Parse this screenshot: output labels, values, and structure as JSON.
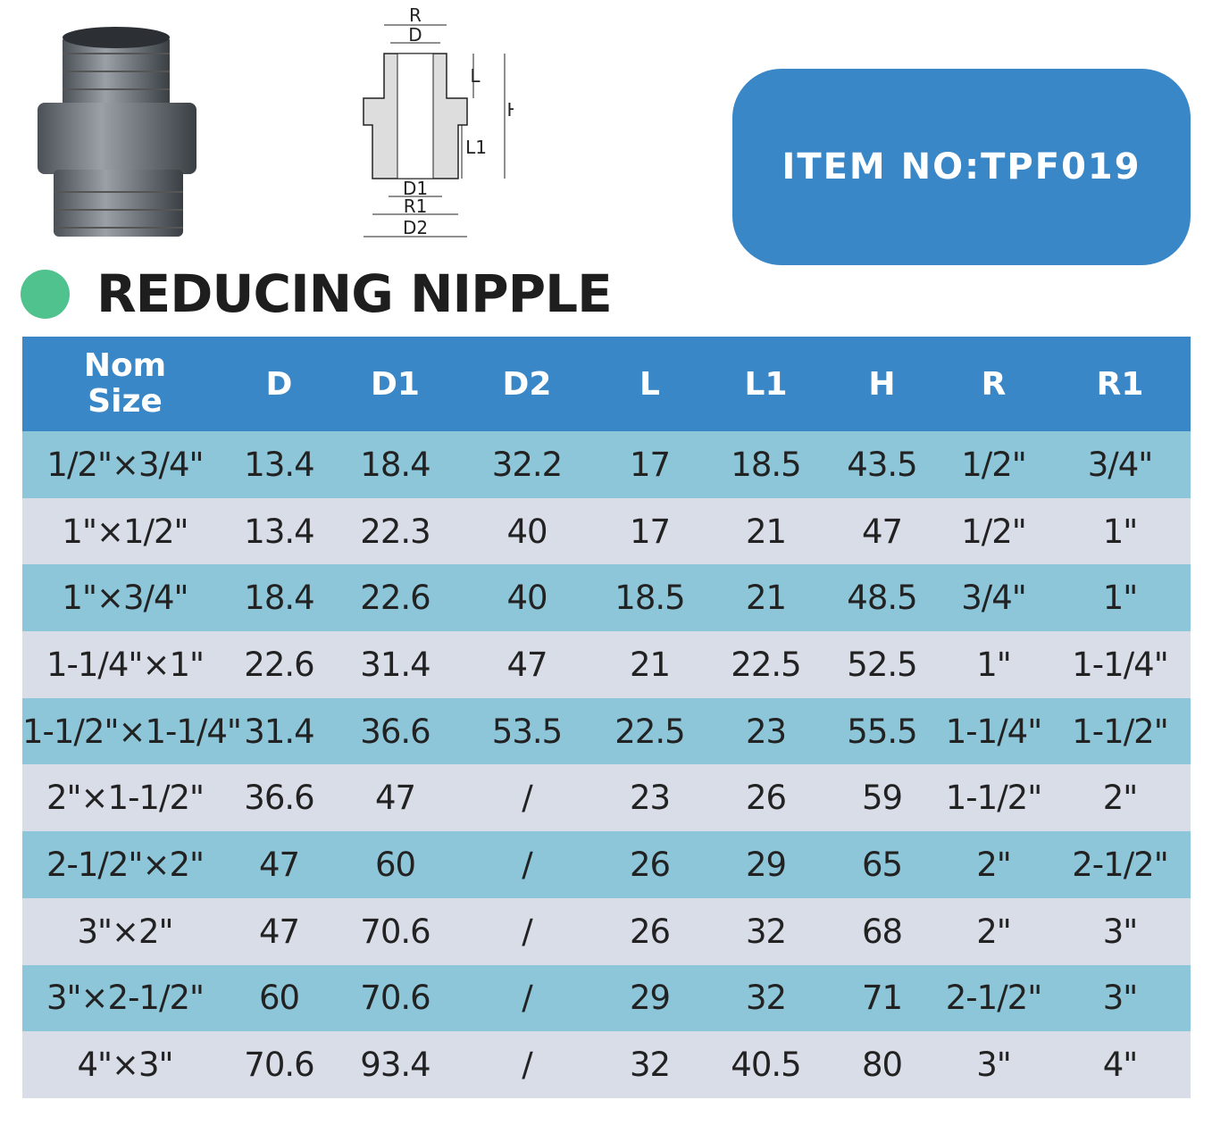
{
  "drawing": {
    "labels": [
      "R",
      "D",
      "L",
      "H",
      "L1",
      "D1",
      "R1",
      "D2"
    ]
  },
  "item_no": "ITEM NO:TPF019",
  "title": "REDUCING NIPPLE",
  "table": {
    "header": [
      "Nom Size",
      "D",
      "D1",
      "D2",
      "L",
      "L1",
      "H",
      "R",
      "R1"
    ],
    "rows": [
      [
        "1/2\"×3/4\"",
        "13.4",
        "18.4",
        "32.2",
        "17",
        "18.5",
        "43.5",
        "1/2\"",
        "3/4\""
      ],
      [
        "1\"×1/2\"",
        "13.4",
        "22.3",
        "40",
        "17",
        "21",
        "47",
        "1/2\"",
        "1\""
      ],
      [
        "1\"×3/4\"",
        "18.4",
        "22.6",
        "40",
        "18.5",
        "21",
        "48.5",
        "3/4\"",
        "1\""
      ],
      [
        "1-1/4\"×1\"",
        "22.6",
        "31.4",
        "47",
        "21",
        "22.5",
        "52.5",
        "1\"",
        "1-1/4\""
      ],
      [
        "1-1/2\"×1-1/4\"",
        "31.4",
        "36.6",
        "53.5",
        "22.5",
        "23",
        "55.5",
        "1-1/4\"",
        "1-1/2\""
      ],
      [
        "2\"×1-1/2\"",
        "36.6",
        "47",
        "/",
        "23",
        "26",
        "59",
        "1-1/2\"",
        "2\""
      ],
      [
        "2-1/2\"×2\"",
        "47",
        "60",
        "/",
        "26",
        "29",
        "65",
        "2\"",
        "2-1/2\""
      ],
      [
        "3\"×2\"",
        "47",
        "70.6",
        "/",
        "26",
        "32",
        "68",
        "2\"",
        "3\""
      ],
      [
        "3\"×2-1/2\"",
        "60",
        "70.6",
        "/",
        "29",
        "32",
        "71",
        "2-1/2\"",
        "3\""
      ],
      [
        "4\"×3\"",
        "70.6",
        "93.4",
        "/",
        "32",
        "40.5",
        "80",
        "3\"",
        "4\""
      ]
    ]
  }
}
